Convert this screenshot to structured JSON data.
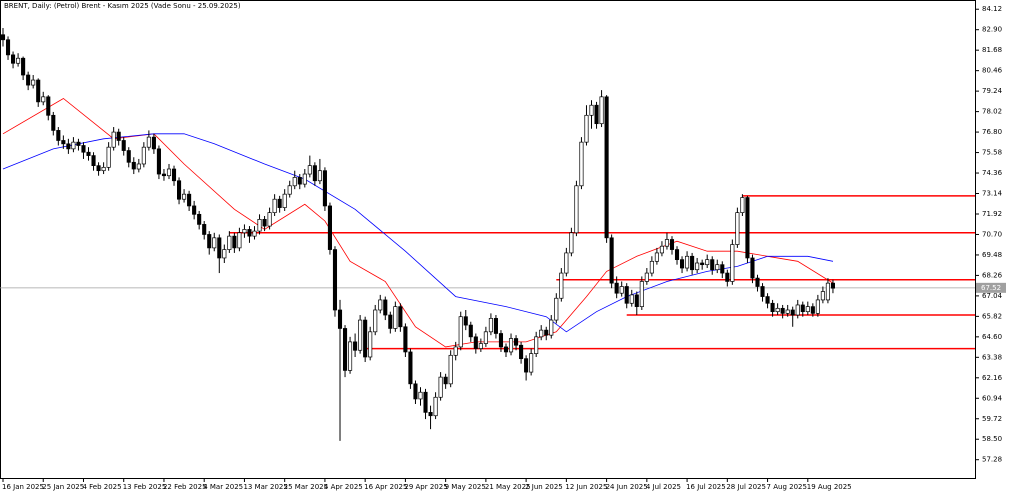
{
  "chart_data": {
    "type": "candlestick",
    "title": "BRENT, Daily:  (Petrol) Brent - Kasım 2025 (Vade Sonu - 25.09.2025)",
    "categories": [
      "16 Jan 2025",
      null,
      null,
      null,
      null,
      null,
      null,
      null,
      "25 Jan 2025",
      null,
      null,
      null,
      null,
      null,
      null,
      null,
      "4 Feb 2025",
      null,
      null,
      null,
      null,
      null,
      null,
      null,
      "13 Feb 2025",
      null,
      null,
      null,
      null,
      null,
      null,
      null,
      "22 Feb 2025",
      null,
      null,
      null,
      null,
      null,
      null,
      null,
      "4 Mar 2025",
      null,
      null,
      null,
      null,
      null,
      null,
      null,
      "13 Mar 2025",
      null,
      null,
      null,
      null,
      null,
      null,
      null,
      "25 Mar 2025",
      null,
      null,
      null,
      null,
      null,
      null,
      null,
      "4 Apr 2025",
      null,
      null,
      null,
      null,
      null,
      null,
      null,
      "16 Apr 2025",
      null,
      null,
      null,
      null,
      null,
      null,
      null,
      "29 Apr 2025",
      null,
      null,
      null,
      null,
      null,
      null,
      null,
      "9 May 2025",
      null,
      null,
      null,
      null,
      null,
      null,
      null,
      "21 May 2025",
      null,
      null,
      null,
      null,
      null,
      null,
      null,
      "2 Jun 2025",
      null,
      null,
      null,
      null,
      null,
      null,
      null,
      "12 Jun 2025",
      null,
      null,
      null,
      null,
      null,
      null,
      null,
      "24 Jun 2025",
      null,
      null,
      null,
      null,
      null,
      null,
      null,
      "4 Jul 2025",
      null,
      null,
      null,
      null,
      null,
      null,
      null,
      "16 Jul 2025",
      null,
      null,
      null,
      null,
      null,
      null,
      null,
      "28 Jul 2025",
      null,
      null,
      null,
      null,
      null,
      null,
      null,
      "7 Aug 2025",
      null,
      null,
      null,
      null,
      null,
      null,
      null,
      "19 Aug 2025",
      null,
      null,
      null,
      null,
      null
    ],
    "ohlc": [
      [
        82.6,
        83.0,
        81.9,
        82.3
      ],
      [
        82.3,
        82.5,
        81.1,
        81.4
      ],
      [
        81.4,
        81.6,
        80.6,
        80.9
      ],
      [
        80.9,
        81.5,
        80.7,
        81.2
      ],
      [
        81.2,
        81.3,
        79.9,
        80.2
      ],
      [
        80.2,
        80.4,
        79.3,
        79.6
      ],
      [
        79.6,
        80.2,
        79.4,
        79.9
      ],
      [
        79.9,
        80.0,
        78.3,
        78.6
      ],
      [
        78.6,
        79.2,
        78.4,
        78.9
      ],
      [
        78.9,
        79.0,
        77.5,
        77.8
      ],
      [
        77.8,
        78.0,
        76.6,
        76.9
      ],
      [
        76.9,
        77.1,
        76.0,
        76.3
      ],
      [
        76.3,
        76.6,
        75.8,
        76.1
      ],
      [
        76.1,
        76.4,
        75.5,
        75.8
      ],
      [
        75.8,
        76.5,
        75.6,
        76.2
      ],
      [
        76.2,
        76.4,
        75.7,
        76.0
      ],
      [
        76.0,
        76.2,
        75.2,
        75.6
      ],
      [
        75.6,
        75.9,
        75.1,
        75.4
      ],
      [
        75.4,
        75.6,
        74.5,
        74.8
      ],
      [
        74.8,
        75.0,
        74.2,
        74.5
      ],
      [
        74.5,
        75.0,
        74.3,
        74.7
      ],
      [
        74.7,
        76.2,
        74.5,
        75.9
      ],
      [
        75.9,
        77.1,
        75.7,
        76.8
      ],
      [
        76.8,
        77.0,
        76.0,
        76.3
      ],
      [
        76.3,
        76.5,
        75.4,
        75.7
      ],
      [
        75.7,
        75.9,
        74.7,
        75.0
      ],
      [
        75.0,
        75.3,
        74.3,
        74.6
      ],
      [
        74.6,
        75.2,
        74.4,
        74.9
      ],
      [
        74.9,
        76.2,
        74.7,
        75.9
      ],
      [
        75.9,
        76.9,
        75.7,
        76.5
      ],
      [
        76.5,
        76.7,
        75.5,
        75.8
      ],
      [
        75.8,
        76.0,
        74.0,
        74.3
      ],
      [
        74.3,
        74.6,
        73.9,
        74.2
      ],
      [
        74.2,
        74.9,
        74.0,
        74.6
      ],
      [
        74.6,
        74.8,
        73.6,
        73.9
      ],
      [
        73.9,
        74.1,
        72.5,
        72.8
      ],
      [
        72.8,
        73.4,
        72.6,
        73.1
      ],
      [
        73.1,
        73.3,
        72.1,
        72.4
      ],
      [
        72.4,
        72.7,
        71.6,
        71.9
      ],
      [
        71.9,
        72.1,
        71.0,
        71.3
      ],
      [
        71.3,
        71.5,
        70.4,
        70.7
      ],
      [
        70.7,
        70.9,
        69.5,
        69.9
      ],
      [
        69.9,
        70.8,
        69.7,
        70.5
      ],
      [
        70.5,
        70.7,
        68.4,
        69.3
      ],
      [
        69.3,
        70.1,
        69.0,
        69.8
      ],
      [
        69.8,
        70.9,
        69.6,
        70.6
      ],
      [
        70.6,
        70.8,
        69.6,
        69.9
      ],
      [
        69.9,
        71.1,
        69.7,
        70.8
      ],
      [
        70.8,
        71.3,
        70.5,
        71.0
      ],
      [
        71.0,
        71.2,
        70.2,
        70.6
      ],
      [
        70.6,
        71.2,
        70.4,
        70.9
      ],
      [
        70.9,
        71.9,
        70.7,
        71.6
      ],
      [
        71.6,
        71.8,
        70.9,
        71.2
      ],
      [
        71.2,
        72.3,
        71.0,
        72.0
      ],
      [
        72.0,
        73.1,
        71.8,
        72.8
      ],
      [
        72.8,
        73.0,
        72.0,
        72.3
      ],
      [
        72.3,
        73.4,
        72.1,
        73.1
      ],
      [
        73.1,
        73.9,
        72.9,
        73.6
      ],
      [
        73.6,
        74.5,
        73.4,
        74.1
      ],
      [
        74.1,
        74.3,
        73.4,
        73.7
      ],
      [
        73.7,
        74.6,
        73.5,
        74.3
      ],
      [
        74.3,
        75.4,
        74.1,
        74.8
      ],
      [
        74.8,
        75.0,
        73.6,
        73.9
      ],
      [
        73.9,
        75.2,
        73.7,
        74.5
      ],
      [
        74.5,
        74.7,
        72.1,
        72.4
      ],
      [
        72.4,
        72.6,
        69.5,
        69.8
      ],
      [
        69.8,
        70.0,
        65.8,
        66.2
      ],
      [
        66.2,
        66.8,
        58.4,
        65.1
      ],
      [
        65.1,
        65.3,
        62.2,
        62.6
      ],
      [
        62.6,
        64.6,
        62.4,
        64.3
      ],
      [
        64.3,
        64.8,
        63.4,
        63.8
      ],
      [
        63.8,
        65.9,
        63.6,
        65.6
      ],
      [
        65.6,
        65.8,
        63.1,
        63.4
      ],
      [
        63.4,
        65.2,
        63.2,
        64.9
      ],
      [
        64.9,
        66.5,
        64.7,
        66.2
      ],
      [
        66.2,
        67.1,
        66.0,
        66.8
      ],
      [
        66.8,
        67.0,
        65.6,
        65.9
      ],
      [
        65.9,
        66.1,
        64.8,
        65.1
      ],
      [
        65.1,
        66.7,
        64.9,
        66.4
      ],
      [
        66.4,
        66.6,
        64.9,
        65.2
      ],
      [
        65.2,
        65.4,
        63.4,
        63.7
      ],
      [
        63.7,
        63.9,
        61.5,
        61.8
      ],
      [
        61.8,
        62.0,
        60.6,
        60.9
      ],
      [
        60.9,
        61.6,
        60.5,
        61.3
      ],
      [
        61.3,
        61.5,
        59.7,
        60.1
      ],
      [
        60.1,
        60.5,
        59.1,
        59.9
      ],
      [
        59.9,
        61.3,
        59.7,
        61.0
      ],
      [
        61.0,
        62.5,
        60.8,
        62.2
      ],
      [
        62.2,
        62.4,
        61.5,
        61.8
      ],
      [
        61.8,
        63.8,
        61.6,
        63.5
      ],
      [
        63.5,
        64.3,
        63.2,
        64.0
      ],
      [
        64.0,
        66.1,
        63.8,
        65.8
      ],
      [
        65.8,
        66.2,
        65.0,
        65.3
      ],
      [
        65.3,
        65.5,
        64.3,
        64.6
      ],
      [
        64.6,
        64.8,
        63.6,
        63.9
      ],
      [
        63.9,
        64.5,
        63.7,
        64.2
      ],
      [
        64.2,
        65.2,
        64.0,
        64.9
      ],
      [
        64.9,
        66.0,
        64.7,
        65.7
      ],
      [
        65.7,
        65.9,
        64.5,
        64.8
      ],
      [
        64.8,
        65.0,
        63.7,
        64.0
      ],
      [
        64.0,
        64.2,
        63.4,
        63.7
      ],
      [
        63.7,
        64.8,
        63.5,
        64.5
      ],
      [
        64.5,
        64.7,
        63.8,
        64.1
      ],
      [
        64.1,
        64.3,
        63.0,
        63.3
      ],
      [
        63.3,
        63.5,
        62.0,
        62.5
      ],
      [
        62.5,
        63.9,
        62.3,
        63.6
      ],
      [
        63.6,
        64.9,
        63.4,
        64.6
      ],
      [
        64.6,
        65.3,
        64.4,
        65.0
      ],
      [
        65.0,
        65.2,
        64.4,
        64.7
      ],
      [
        64.7,
        65.9,
        64.5,
        65.6
      ],
      [
        65.6,
        67.2,
        65.4,
        66.9
      ],
      [
        66.9,
        68.7,
        66.7,
        68.4
      ],
      [
        68.4,
        69.9,
        68.2,
        69.6
      ],
      [
        69.6,
        71.1,
        69.4,
        70.8
      ],
      [
        70.8,
        73.9,
        70.6,
        73.6
      ],
      [
        73.6,
        76.5,
        73.4,
        76.2
      ],
      [
        76.2,
        78.4,
        76.0,
        77.8
      ],
      [
        77.8,
        78.7,
        77.0,
        78.4
      ],
      [
        78.4,
        78.6,
        77.0,
        77.3
      ],
      [
        77.3,
        79.3,
        77.1,
        78.9
      ],
      [
        78.9,
        79.0,
        70.2,
        70.5
      ],
      [
        70.5,
        70.7,
        67.5,
        67.8
      ],
      [
        67.8,
        68.2,
        66.9,
        67.2
      ],
      [
        67.2,
        67.9,
        67.0,
        67.6
      ],
      [
        67.6,
        67.8,
        66.3,
        66.6
      ],
      [
        66.6,
        67.4,
        66.4,
        67.1
      ],
      [
        67.1,
        67.3,
        65.9,
        66.4
      ],
      [
        66.4,
        68.2,
        66.2,
        67.9
      ],
      [
        67.9,
        68.7,
        67.7,
        68.4
      ],
      [
        68.4,
        69.4,
        68.2,
        69.1
      ],
      [
        69.1,
        69.9,
        68.9,
        69.6
      ],
      [
        69.6,
        70.3,
        69.4,
        70.0
      ],
      [
        70.0,
        70.8,
        69.8,
        70.4
      ],
      [
        70.4,
        70.6,
        69.5,
        69.8
      ],
      [
        69.8,
        70.0,
        68.9,
        69.2
      ],
      [
        69.2,
        69.4,
        68.4,
        68.7
      ],
      [
        68.7,
        69.7,
        68.5,
        69.4
      ],
      [
        69.4,
        69.6,
        68.3,
        68.6
      ],
      [
        68.6,
        69.3,
        68.4,
        69.0
      ],
      [
        69.0,
        69.2,
        68.6,
        68.9
      ],
      [
        68.9,
        69.5,
        68.7,
        69.2
      ],
      [
        69.2,
        69.4,
        68.3,
        68.6
      ],
      [
        68.6,
        69.2,
        68.4,
        68.9
      ],
      [
        68.9,
        69.1,
        68.1,
        68.4
      ],
      [
        68.4,
        68.6,
        67.6,
        67.9
      ],
      [
        67.9,
        70.4,
        67.7,
        70.1
      ],
      [
        70.1,
        72.3,
        69.9,
        72.0
      ],
      [
        72.0,
        73.1,
        71.8,
        72.9
      ],
      [
        72.9,
        73.0,
        69.0,
        69.3
      ],
      [
        69.3,
        69.5,
        67.8,
        68.1
      ],
      [
        68.1,
        68.3,
        67.3,
        67.6
      ],
      [
        67.6,
        67.8,
        66.7,
        67.0
      ],
      [
        67.0,
        67.2,
        66.3,
        66.6
      ],
      [
        66.6,
        66.8,
        65.8,
        66.1
      ],
      [
        66.1,
        66.6,
        65.9,
        66.3
      ],
      [
        66.3,
        66.5,
        65.7,
        66.0
      ],
      [
        66.0,
        66.5,
        65.8,
        66.2
      ],
      [
        66.2,
        66.4,
        65.2,
        65.9
      ],
      [
        65.9,
        66.8,
        65.7,
        66.5
      ],
      [
        66.5,
        66.7,
        65.8,
        66.1
      ],
      [
        66.1,
        66.7,
        65.9,
        66.4
      ],
      [
        66.4,
        66.6,
        65.8,
        66.0
      ],
      [
        66.0,
        67.1,
        65.8,
        66.8
      ],
      [
        66.8,
        67.6,
        66.6,
        67.3
      ],
      [
        66.8,
        68.1,
        66.6,
        67.8
      ],
      [
        67.8,
        68.0,
        67.2,
        67.5
      ]
    ],
    "up_color": "#ffffff",
    "down_color": "#000000",
    "lines": [
      {
        "color": "#ff0000",
        "x": [
          0,
          12,
          22,
          30,
          36,
          46,
          52,
          60,
          64,
          69,
          76,
          82,
          88,
          94,
          104,
          110,
          116,
          120,
          126,
          134,
          140,
          146,
          152,
          158,
          165
        ],
        "values": [
          76.7,
          78.8,
          76.4,
          76.7,
          74.9,
          72.2,
          71.0,
          72.5,
          71.5,
          69.1,
          67.9,
          65.2,
          64.0,
          64.3,
          64.3,
          64.9,
          67.0,
          68.5,
          69.4,
          70.3,
          69.7,
          69.7,
          69.4,
          69.1,
          67.8
        ]
      },
      {
        "color": "#0000ff",
        "x": [
          0,
          10,
          20,
          30,
          36,
          42,
          52,
          60,
          70,
          80,
          90,
          100,
          108,
          112,
          118,
          124,
          132,
          140,
          146,
          152,
          160,
          165
        ],
        "values": [
          74.6,
          75.8,
          76.4,
          76.7,
          76.7,
          76.1,
          74.9,
          74.0,
          72.2,
          69.7,
          67.0,
          66.4,
          65.8,
          64.9,
          66.1,
          67.0,
          67.9,
          68.5,
          68.8,
          69.4,
          69.4,
          69.1
        ]
      }
    ],
    "levels": [
      {
        "value": 73.0,
        "from": 147
      },
      {
        "value": 70.8,
        "from": 45
      },
      {
        "value": 68.0,
        "from": 110
      },
      {
        "value": 65.9,
        "from": 124
      },
      {
        "value": 63.9,
        "from": 72
      }
    ],
    "level_color": "#ff0000",
    "last_price": 67.52,
    "ylim": [
      56.19,
      84.61
    ],
    "yticks": [
      84.12,
      {
        "value": 82.9,
        "label": "82.90"
      },
      81.68,
      80.46,
      79.24,
      78.02,
      {
        "value": 76.8,
        "label": "76.80"
      },
      75.58,
      74.36,
      73.14,
      71.92,
      {
        "value": 70.7,
        "label": "70.70"
      },
      69.48,
      68.26,
      67.04,
      65.82,
      {
        "value": 64.6,
        "label": "64.60"
      },
      63.38,
      62.16,
      60.94,
      59.72,
      {
        "value": 58.5,
        "label": "58.50"
      },
      57.28
    ]
  }
}
